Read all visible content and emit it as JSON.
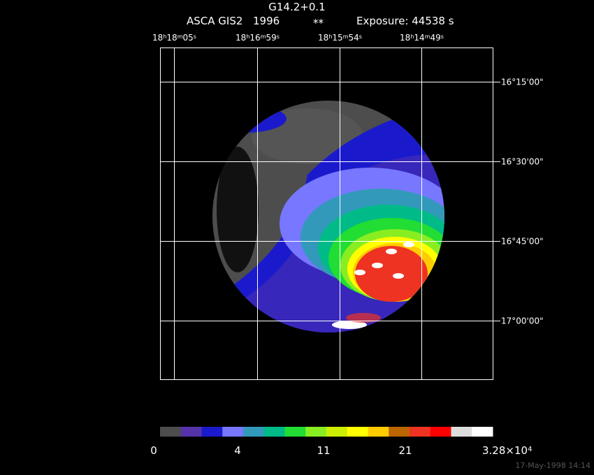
{
  "header": {
    "title": "G14.2+0.1",
    "instrument": "ASCA GIS2",
    "year": "1996",
    "marker": "**",
    "exposure": "Exposure: 44538 s"
  },
  "ra_labels": [
    [
      "18",
      "h",
      "18",
      "m",
      "05",
      "s"
    ],
    [
      "18",
      "h",
      "16",
      "m",
      "59",
      "s"
    ],
    [
      "18",
      "h",
      "15",
      "m",
      "54",
      "s"
    ],
    [
      "18",
      "h",
      "14",
      "m",
      "49",
      "s"
    ]
  ],
  "dec_labels": [
    "16°15'00\"",
    "16°30'00\"",
    "16°45'00\"",
    "17°00'00\""
  ],
  "colorbar": {
    "colors": [
      "#4d4d4d",
      "#5533aa",
      "#1a1acc",
      "#7777ff",
      "#3399bb",
      "#00bb88",
      "#22dd33",
      "#88ee22",
      "#ccee00",
      "#ffff00",
      "#ffcc00",
      "#bb6600",
      "#ee3322",
      "#ff0000",
      "#dddddd",
      "#ffffff"
    ],
    "labels": [
      "0",
      "4",
      "11",
      "21"
    ],
    "max": [
      "3.28×10",
      "4"
    ]
  },
  "footer": "17-May-1998 14:14"
}
